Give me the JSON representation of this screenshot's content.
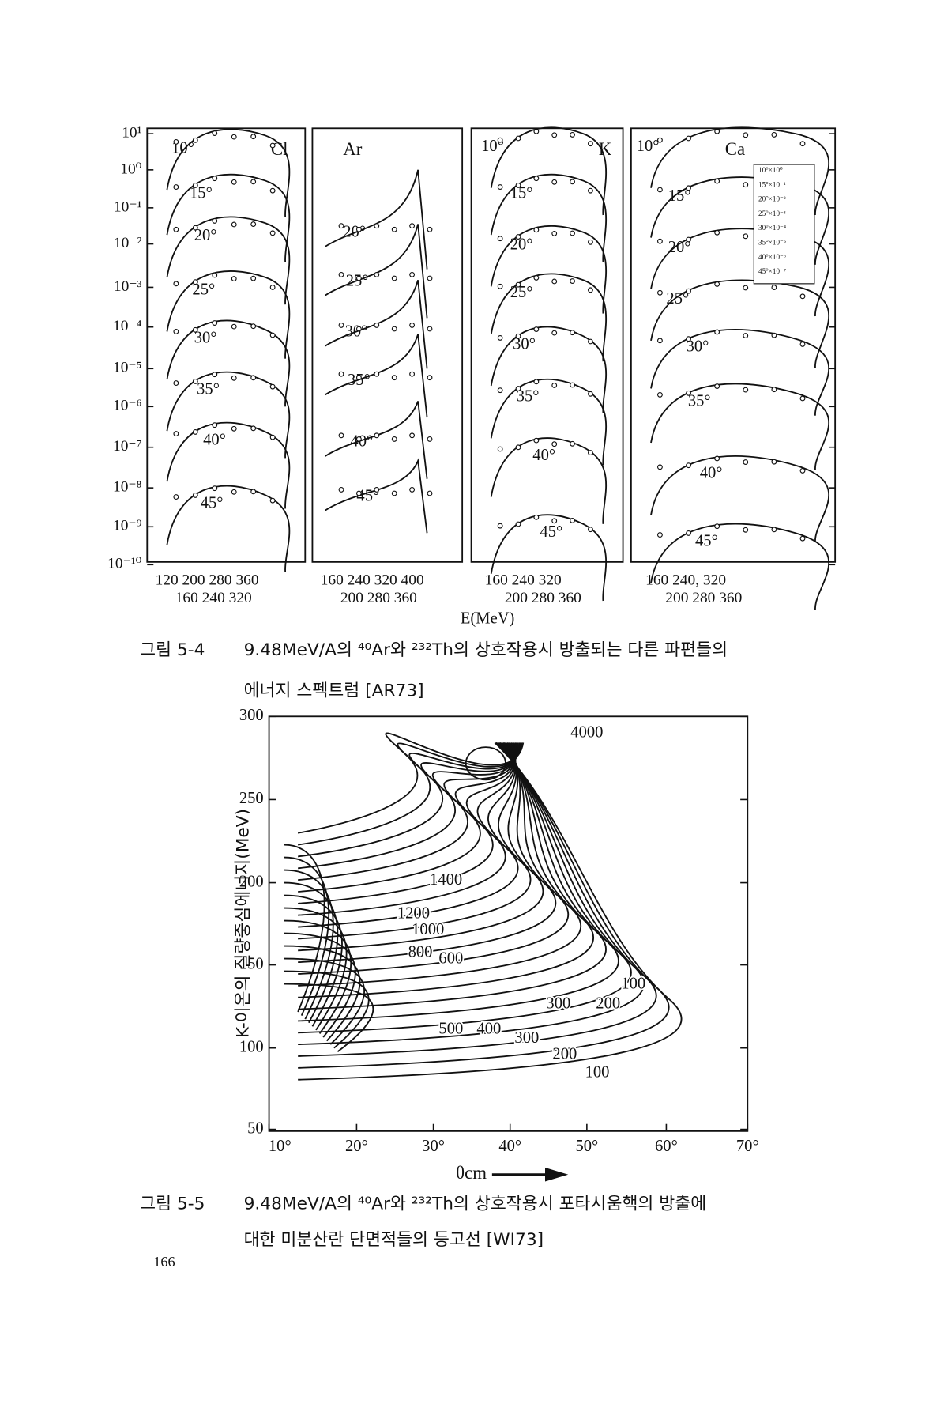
{
  "figure_1": {
    "panels": [
      {
        "element": "Cl",
        "angles": [
          "10°",
          "15°",
          "20°",
          "25°",
          "30°",
          "35°",
          "40°",
          "45°"
        ]
      },
      {
        "element": "Ar",
        "angles": [
          "20°",
          "25°",
          "30°",
          "35°",
          "40°",
          "45°"
        ]
      },
      {
        "element": "K",
        "angles": [
          "10°",
          "15°",
          "20°",
          "25°",
          "30°",
          "35°",
          "40°",
          "45°"
        ]
      },
      {
        "element": "Ca",
        "angles": [
          "10°",
          "15°",
          "20°",
          "25°",
          "30°",
          "35°",
          "40°",
          "45°"
        ]
      }
    ],
    "y_tick_labels": [
      "10¹",
      "10⁰",
      "10⁻¹",
      "10⁻²",
      "10⁻³",
      "10⁻⁴",
      "10⁻⁵",
      "10⁻⁶",
      "10⁻⁷",
      "10⁻⁸",
      "10⁻⁹",
      "10⁻¹⁰"
    ],
    "x_tick_labels": [
      {
        "upper": "120  200  280  360",
        "lower": "160   240   320"
      },
      {
        "upper": "160   240   320   400",
        "lower": "200   280   360"
      },
      {
        "upper": "160    240    320",
        "lower": "200   280  360"
      },
      {
        "upper": "160   240,  320",
        "lower": "200   280   360"
      }
    ],
    "inset": [
      "10°×10⁰",
      "15°×10⁻¹",
      "20°×10⁻²",
      "25°×10⁻³",
      "30°×10⁻⁴",
      "35°×10⁻⁵",
      "40°×10⁻⁶",
      "45°×10⁻⁷"
    ],
    "x_label": "E(MeV)",
    "caption": {
      "label": "그림 5-4",
      "line_1": "9.48MeV/A의 ⁴⁰Ar와 ²³²Th의 상호작용시 방출되는 다른 파편들의",
      "line_2": "에너지 스펙트럼 [AR73]"
    }
  },
  "figure_2": {
    "y_label": "K-이온의 질량중심에너지(MeV)",
    "y_tick_labels": [
      "300",
      "250",
      "200",
      "150",
      "100",
      "50"
    ],
    "x_tick_labels": [
      "10°",
      "20°",
      "30°",
      "40°",
      "50°",
      "60°",
      "70°"
    ],
    "x_label": "θcm",
    "contour_labels": [
      "4000",
      "1400",
      "1200",
      "1000",
      "800",
      "600",
      "500",
      "400",
      "300",
      "200",
      "100",
      "100",
      "200",
      "300"
    ],
    "caption": {
      "label": "그림 5-5",
      "line_1": "9.48MeV/A의 ⁴⁰Ar와 ²³²Th의 상호작용시 포타시움핵의 방출에",
      "line_2": "대한 미분산란 단면적들의 등고선 [WI73]"
    }
  },
  "page_number": "166"
}
